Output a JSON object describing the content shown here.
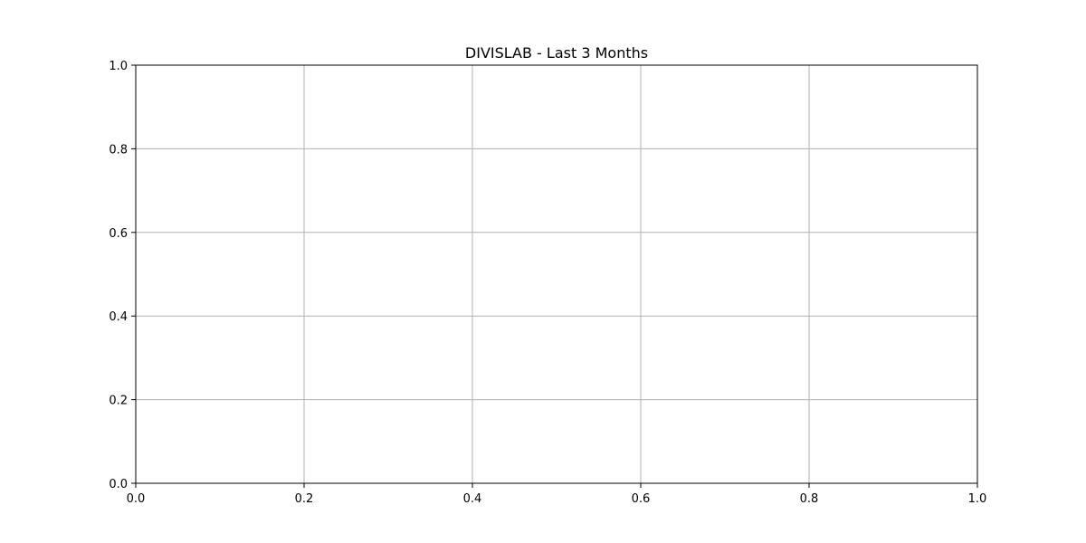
{
  "chart_data": {
    "type": "line",
    "title": "DIVISLAB - Last 3 Months",
    "xlabel": "",
    "ylabel": "",
    "xlim": [
      0.0,
      1.0
    ],
    "ylim": [
      0.0,
      1.0
    ],
    "x_ticks": [
      0.0,
      0.2,
      0.4,
      0.6,
      0.8,
      1.0
    ],
    "y_ticks": [
      0.0,
      0.2,
      0.4,
      0.6,
      0.8,
      1.0
    ],
    "x_tick_labels": [
      "0.0",
      "0.2",
      "0.4",
      "0.6",
      "0.8",
      "1.0"
    ],
    "y_tick_labels": [
      "0.0",
      "0.2",
      "0.4",
      "0.6",
      "0.8",
      "1.0"
    ],
    "grid": true,
    "series": []
  },
  "colors": {
    "grid": "#b0b0b0",
    "axis": "#000000",
    "background": "#ffffff"
  }
}
